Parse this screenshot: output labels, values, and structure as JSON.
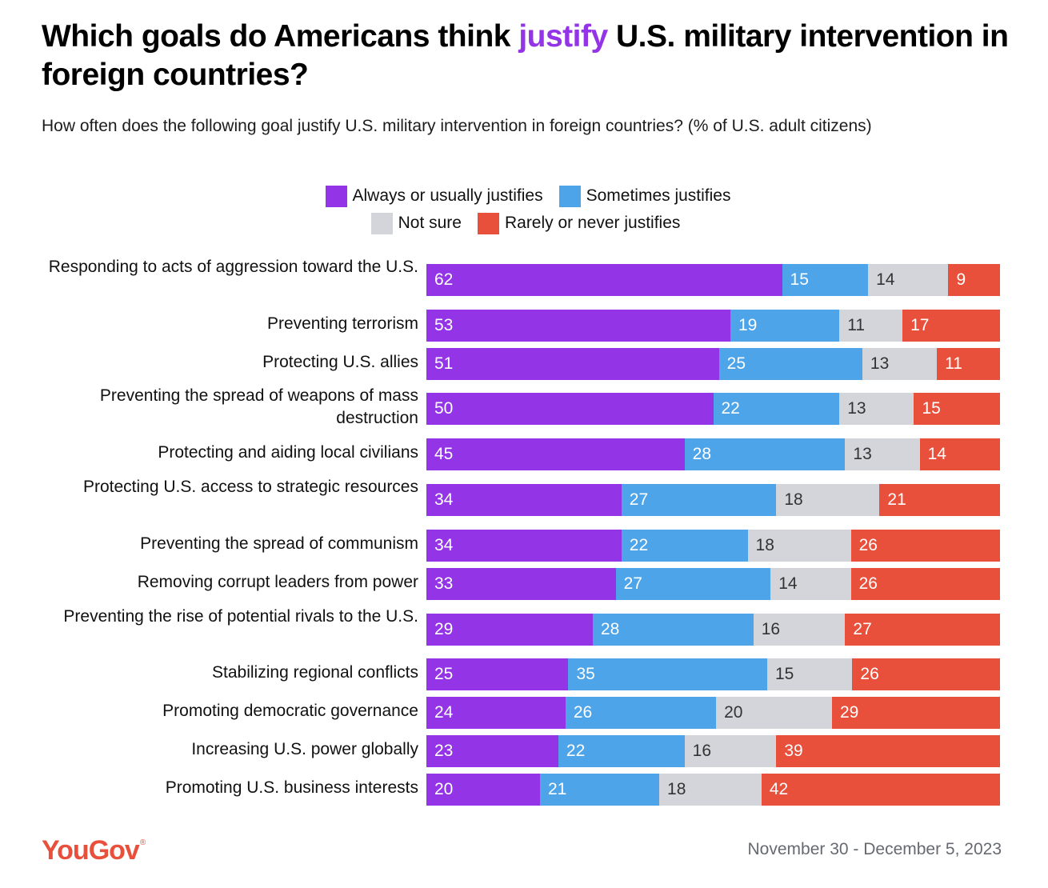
{
  "header": {
    "title_part1": "Which goals do Americans think ",
    "title_highlight": "justify",
    "title_part2": " U.S. military intervention in foreign countries?",
    "subtitle": "How often does the following goal justify U.S. military intervention in foreign countries? (% of U.S. adult citizens)"
  },
  "footer": {
    "logo": "YouGov",
    "logo_mark": "®",
    "date_range": "November 30 - December 5, 2023"
  },
  "colors": {
    "highlight": "#9334e6",
    "always": "#9334e6",
    "sometimes": "#4ea4e9",
    "not_sure": "#d3d5db",
    "rarely": "#e8503b",
    "brand": "#e8503b"
  },
  "chart_data": {
    "type": "bar",
    "orientation": "horizontal",
    "stacked": true,
    "legend_position": "top",
    "categories": [
      "Responding to acts of aggression toward the U.S.",
      "Preventing terrorism",
      "Protecting U.S. allies",
      "Preventing the spread of weapons of mass destruction",
      "Protecting and aiding local civilians",
      "Protecting U.S. access to strategic resources",
      "Preventing the spread of communism",
      "Removing corrupt leaders from power",
      "Preventing the rise of potential rivals to the U.S.",
      "Stabilizing regional conflicts",
      "Promoting democratic governance",
      "Increasing U.S. power globally",
      "Promoting U.S. business interests"
    ],
    "series": [
      {
        "name": "Always or usually justifies",
        "color": "#9334e6",
        "values": [
          62,
          53,
          51,
          50,
          45,
          34,
          34,
          33,
          29,
          25,
          24,
          23,
          20
        ]
      },
      {
        "name": "Sometimes justifies",
        "color": "#4ea4e9",
        "values": [
          15,
          19,
          25,
          22,
          28,
          27,
          22,
          27,
          28,
          35,
          26,
          22,
          21
        ]
      },
      {
        "name": "Not sure",
        "color": "#d3d5db",
        "values": [
          14,
          11,
          13,
          13,
          13,
          18,
          18,
          14,
          16,
          15,
          20,
          16,
          18
        ]
      },
      {
        "name": "Rarely or never justifies",
        "color": "#e8503b",
        "values": [
          9,
          17,
          11,
          15,
          14,
          21,
          26,
          26,
          27,
          26,
          29,
          39,
          42
        ]
      }
    ]
  }
}
